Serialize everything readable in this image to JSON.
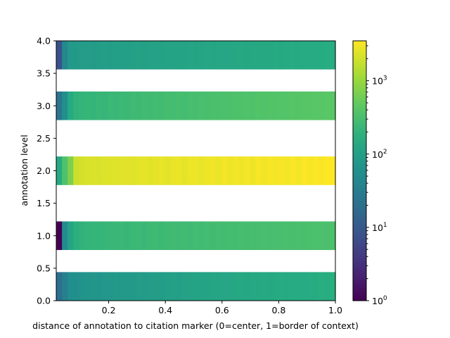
{
  "chart_data": {
    "type": "heatmap",
    "title": "",
    "xlabel": "distance of annotation to citation marker (0=center, 1=border of context)",
    "ylabel": "annotation level",
    "xlim": [
      0.015,
      1.0
    ],
    "ylim": [
      0.0,
      4.0
    ],
    "x_ticks": [
      "0.2",
      "0.4",
      "0.6",
      "0.8",
      "1.0"
    ],
    "y_ticks": [
      "0.0",
      "0.5",
      "1.0",
      "1.5",
      "2.0",
      "2.5",
      "3.0",
      "3.5",
      "4.0"
    ],
    "x_bins": {
      "start": 0.015,
      "end": 1.0,
      "count": 49
    },
    "colorscale": "viridis",
    "color_scale": "log",
    "color_range": [
      1,
      3500
    ],
    "colorbar_ticks": [
      "10^0",
      "10^1",
      "10^2",
      "10^3"
    ],
    "rows": [
      {
        "level": 0,
        "y_range": [
          0.0,
          0.44
        ],
        "counts": [
          20,
          35,
          55,
          60,
          65,
          70,
          72,
          70,
          75,
          78,
          80,
          82,
          85,
          80,
          90,
          88,
          92,
          95,
          90,
          100,
          105,
          98,
          110,
          108,
          115,
          120,
          118,
          125,
          122,
          130,
          128,
          135,
          140,
          132,
          138,
          145,
          150,
          142,
          148,
          155,
          150,
          158,
          160,
          152,
          165,
          160,
          170,
          165,
          175
        ]
      },
      {
        "level": 1,
        "y_range": [
          0.78,
          1.22
        ],
        "counts": [
          1,
          50,
          120,
          180,
          200,
          210,
          220,
          215,
          225,
          230,
          235,
          240,
          228,
          245,
          250,
          238,
          255,
          260,
          248,
          265,
          270,
          258,
          275,
          268,
          280,
          272,
          285,
          278,
          290,
          282,
          295,
          288,
          300,
          292,
          305,
          298,
          310,
          302,
          315,
          308,
          320,
          312,
          325,
          318,
          330,
          322,
          335,
          328,
          340
        ]
      },
      {
        "level": 2,
        "y_range": [
          1.78,
          2.22
        ],
        "counts": [
          150,
          350,
          700,
          1900,
          2100,
          2200,
          2300,
          2250,
          2350,
          2400,
          2380,
          2450,
          2500,
          2420,
          2550,
          2600,
          2480,
          2650,
          2700,
          2550,
          2750,
          2800,
          2620,
          2850,
          2900,
          2700,
          2950,
          3000,
          2780,
          3050,
          2850,
          3100,
          2900,
          3150,
          2950,
          3200,
          3000,
          3250,
          3050,
          3300,
          3100,
          3350,
          3150,
          3400,
          3200,
          3450,
          3300,
          3500,
          3500
        ]
      },
      {
        "level": 3,
        "y_range": [
          2.78,
          3.22
        ],
        "counts": [
          25,
          60,
          150,
          200,
          210,
          220,
          215,
          230,
          225,
          240,
          235,
          250,
          245,
          260,
          255,
          270,
          265,
          280,
          275,
          290,
          285,
          300,
          295,
          310,
          305,
          320,
          315,
          330,
          325,
          340,
          335,
          350,
          345,
          360,
          355,
          370,
          365,
          380,
          375,
          390,
          385,
          400,
          395,
          410,
          405,
          420,
          415,
          430,
          425
        ]
      },
      {
        "level": 4,
        "y_range": [
          3.56,
          4.0
        ],
        "counts": [
          8,
          45,
          80,
          85,
          90,
          92,
          88,
          95,
          98,
          94,
          100,
          102,
          98,
          105,
          108,
          104,
          110,
          112,
          108,
          115,
          118,
          114,
          120,
          122,
          118,
          125,
          128,
          124,
          130,
          132,
          128,
          135,
          138,
          134,
          140,
          142,
          138,
          145,
          148,
          144,
          150,
          152,
          148,
          155,
          158,
          154,
          160,
          162,
          165
        ]
      }
    ]
  }
}
